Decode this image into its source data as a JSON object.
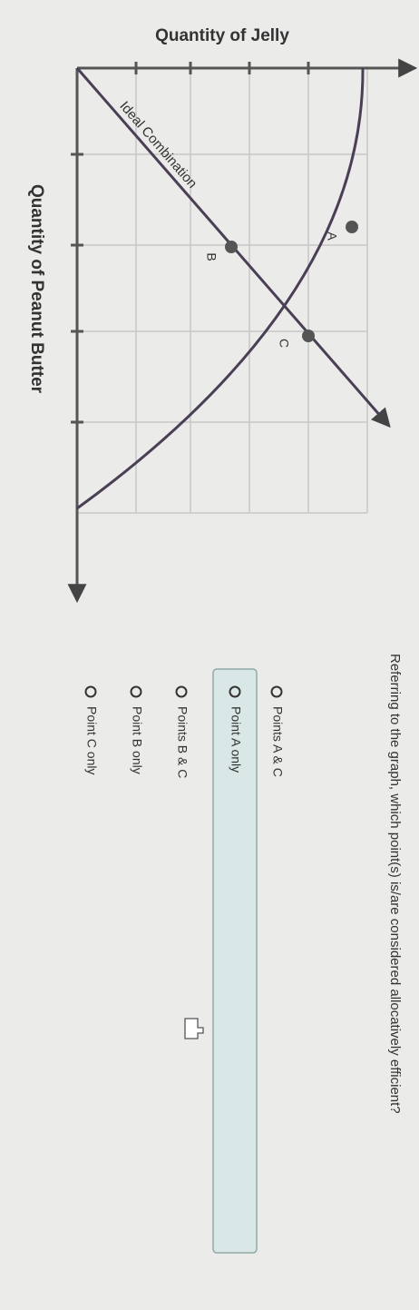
{
  "graph": {
    "y_axis_label": "Quantity of Jelly",
    "x_axis_label": "Quantity of Peanut Butter",
    "line_label": "Ideal Combination",
    "points": [
      "A",
      "B",
      "C"
    ]
  },
  "question": "Referring to the graph, which point(s) is/are considered allocatively efficient?",
  "options": [
    "Points A & C",
    "Point A only",
    "Points B & C",
    "Point B only",
    "Point C only"
  ]
}
